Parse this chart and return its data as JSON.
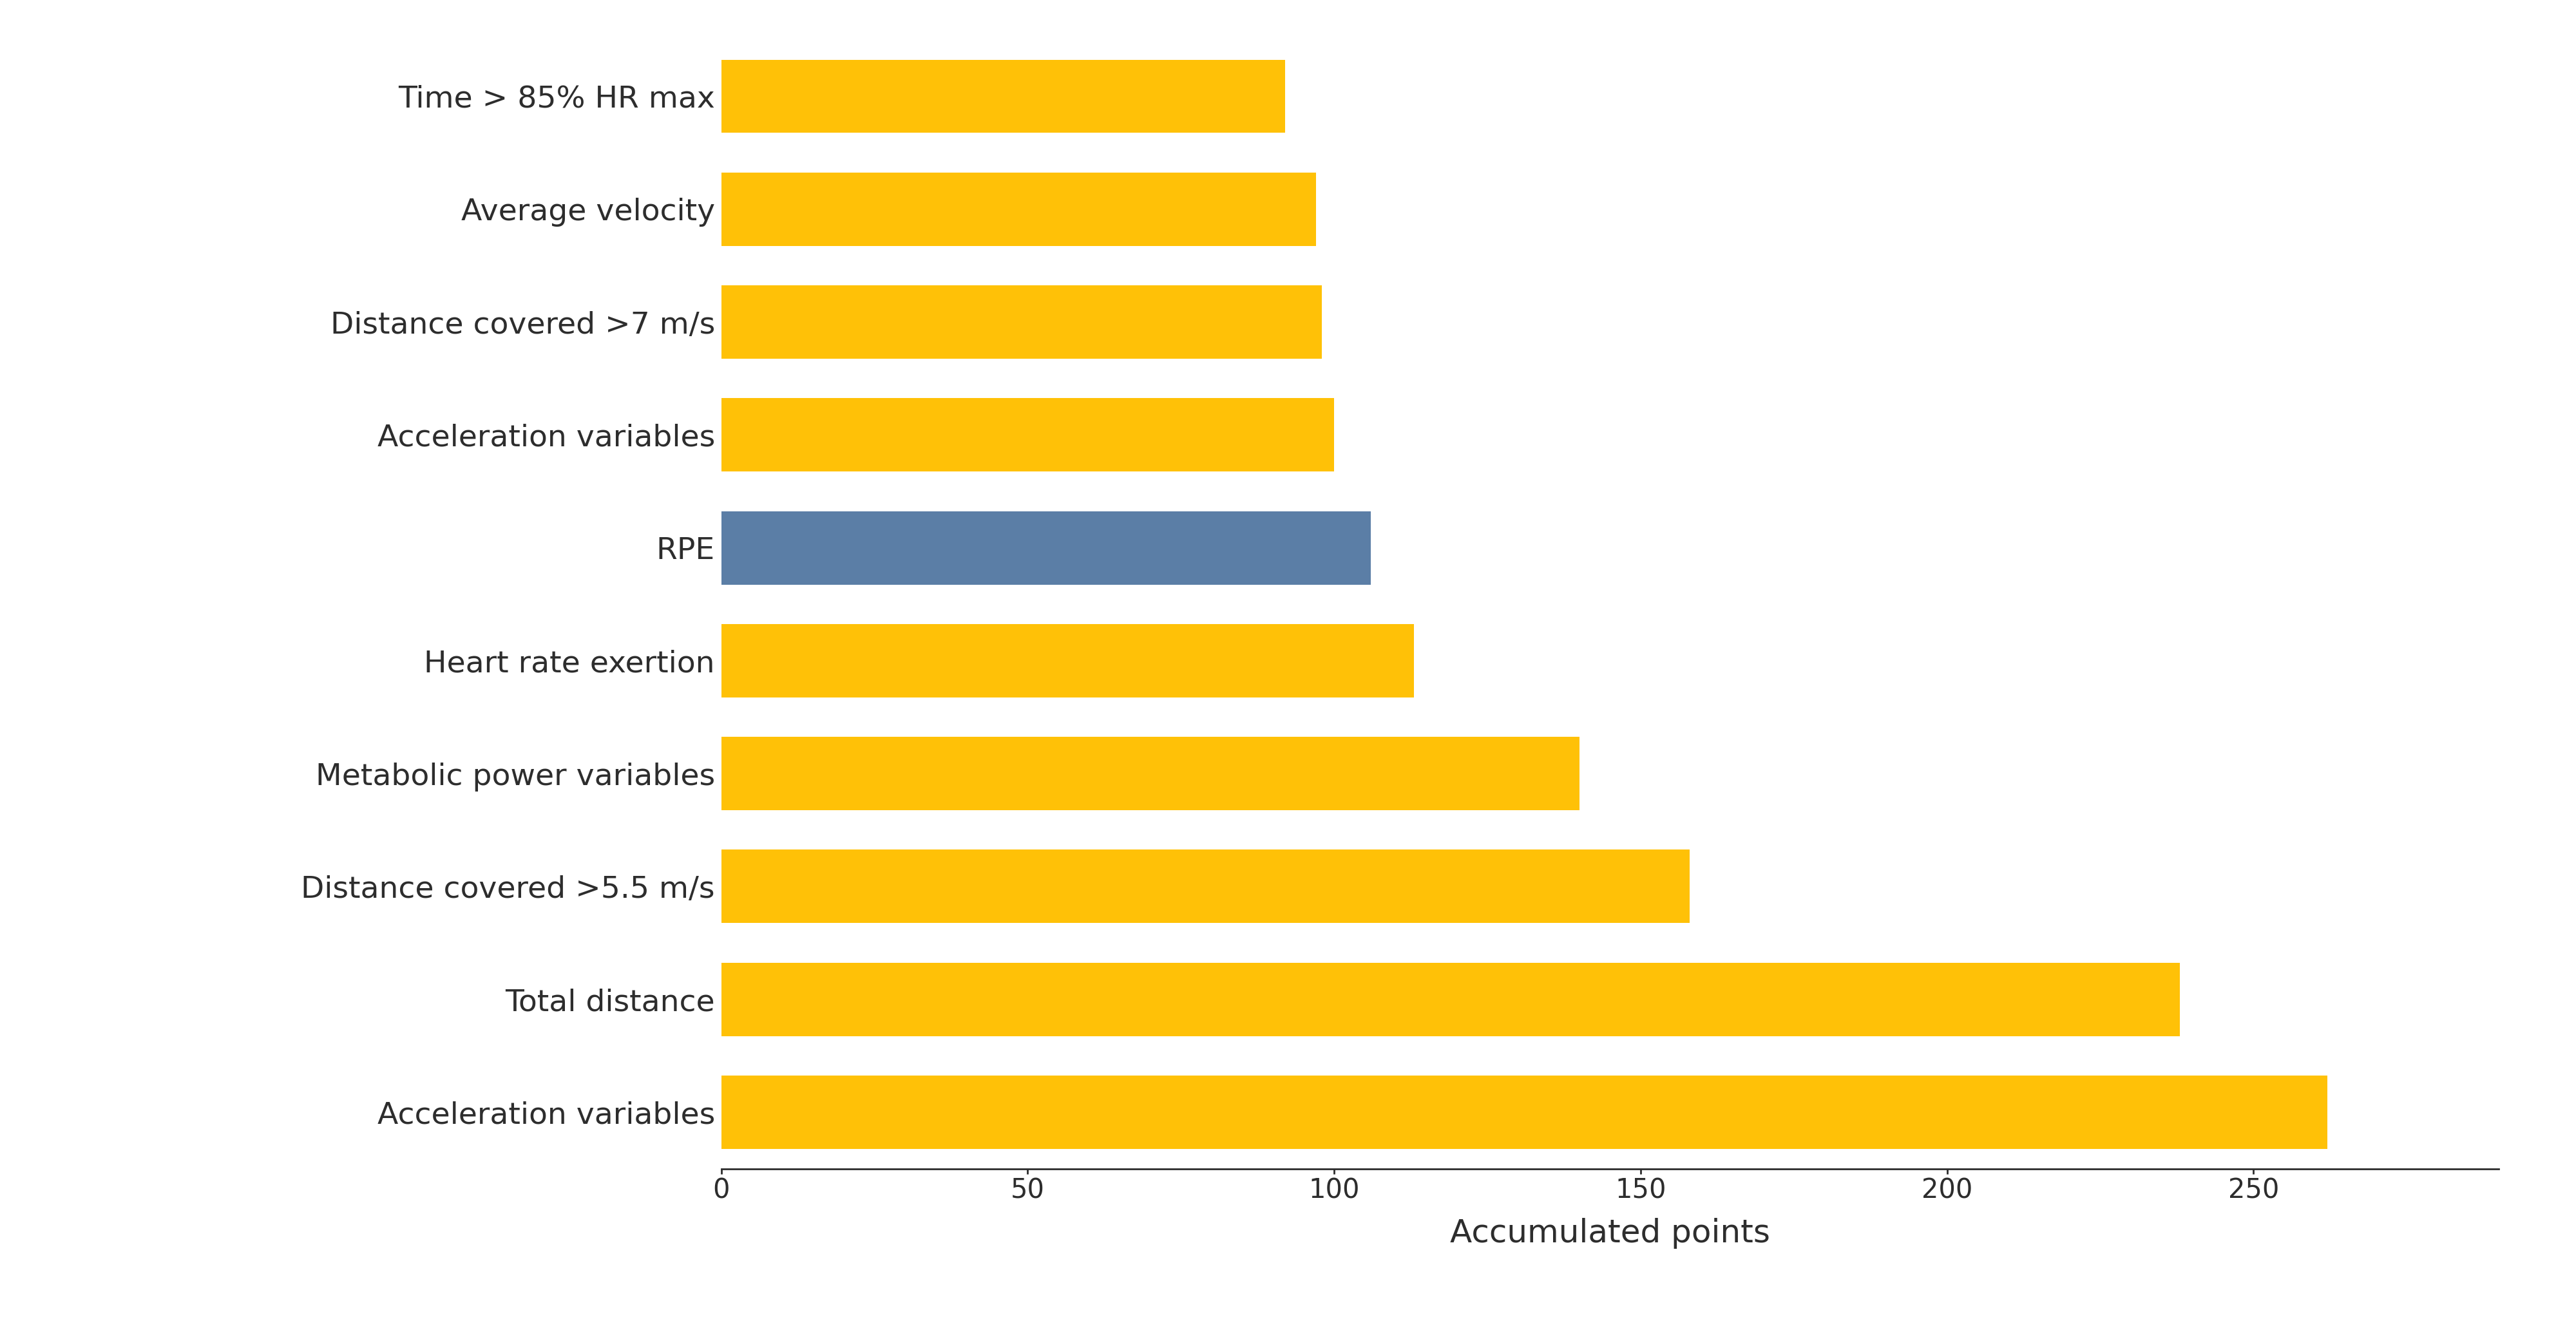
{
  "categories": [
    "Acceleration variables",
    "Total distance",
    "Distance covered >5.5 m/s",
    "Metabolic power variables",
    "Heart rate exertion",
    "RPE",
    "Acceleration variables",
    "Distance covered >7 m/s",
    "Average velocity",
    "Time > 85% HR max"
  ],
  "values": [
    262,
    238,
    158,
    140,
    113,
    106,
    100,
    98,
    97,
    92
  ],
  "colors": [
    "#FFC107",
    "#FFC107",
    "#FFC107",
    "#FFC107",
    "#FFC107",
    "#5B7EA6",
    "#FFC107",
    "#FFC107",
    "#FFC107",
    "#FFC107"
  ],
  "xlabel": "Accumulated points",
  "xlim": [
    0,
    290
  ],
  "xticks": [
    0,
    50,
    100,
    150,
    200,
    250
  ],
  "background_color": "#FFFFFF",
  "bar_height": 0.65,
  "label_fontsize": 34,
  "tick_fontsize": 30,
  "xlabel_fontsize": 36
}
